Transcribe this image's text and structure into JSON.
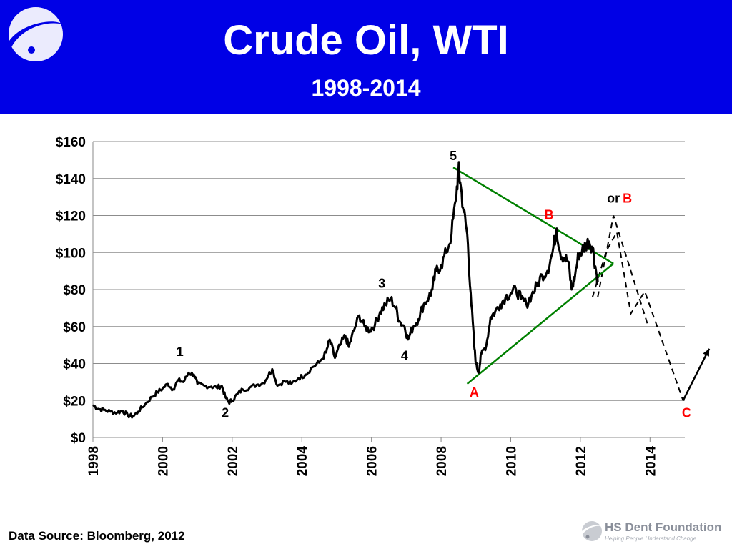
{
  "header": {
    "title": "Crude Oil, WTI",
    "subtitle": "1998-2014",
    "background_color": "#0000e6",
    "logo_icon": "circular-swoosh-logo-icon"
  },
  "footer": {
    "source": "Data Source: Bloomberg, 2012",
    "brand": "HS Dent Foundation",
    "tagline": "Helping People Understand Change",
    "logo_icon": "swoosh-logo-icon"
  },
  "chart_data": {
    "type": "line",
    "title": "",
    "xlabel": "",
    "ylabel": "",
    "xlim": [
      1998,
      2015
    ],
    "ylim": [
      0,
      160
    ],
    "y_ticks": [
      0,
      20,
      40,
      60,
      80,
      100,
      120,
      140,
      160
    ],
    "y_tick_labels": [
      "$0",
      "$20",
      "$40",
      "$60",
      "$80",
      "$100",
      "$120",
      "$140",
      "$160"
    ],
    "x_ticks": [
      1998,
      2000,
      2002,
      2004,
      2006,
      2008,
      2010,
      2012,
      2014
    ],
    "x_tick_labels": [
      "1998",
      "2000",
      "2002",
      "2004",
      "2006",
      "2008",
      "2010",
      "2012",
      "2014"
    ],
    "grid": "horizontal",
    "legend": "none",
    "series": [
      {
        "color": "#000000",
        "points": [
          [
            1998.0,
            17.5
          ],
          [
            1998.15,
            15.5
          ],
          [
            1998.3,
            15.0
          ],
          [
            1998.5,
            14.0
          ],
          [
            1998.7,
            13.5
          ],
          [
            1998.85,
            14.5
          ],
          [
            1999.0,
            12.0
          ],
          [
            1999.15,
            11.5
          ],
          [
            1999.3,
            14.0
          ],
          [
            1999.5,
            18.0
          ],
          [
            1999.7,
            22.0
          ],
          [
            1999.85,
            24.5
          ],
          [
            2000.0,
            26.5
          ],
          [
            2000.15,
            29.0
          ],
          [
            2000.3,
            26.0
          ],
          [
            2000.45,
            31.0
          ],
          [
            2000.6,
            30.0
          ],
          [
            2000.75,
            35.0
          ],
          [
            2000.9,
            34.0
          ],
          [
            2001.0,
            29.0
          ],
          [
            2001.2,
            28.0
          ],
          [
            2001.4,
            27.5
          ],
          [
            2001.55,
            27.0
          ],
          [
            2001.7,
            28.0
          ],
          [
            2001.8,
            22.0
          ],
          [
            2001.9,
            19.0
          ],
          [
            2002.0,
            20.0
          ],
          [
            2002.15,
            23.5
          ],
          [
            2002.3,
            26.0
          ],
          [
            2002.5,
            27.0
          ],
          [
            2002.7,
            28.5
          ],
          [
            2002.9,
            29.5
          ],
          [
            2003.05,
            34.0
          ],
          [
            2003.15,
            37.0
          ],
          [
            2003.3,
            28.0
          ],
          [
            2003.5,
            30.5
          ],
          [
            2003.7,
            29.0
          ],
          [
            2003.9,
            32.0
          ],
          [
            2004.1,
            34.0
          ],
          [
            2004.3,
            38.0
          ],
          [
            2004.5,
            40.5
          ],
          [
            2004.7,
            46.0
          ],
          [
            2004.8,
            53.0
          ],
          [
            2004.95,
            43.0
          ],
          [
            2005.1,
            50.0
          ],
          [
            2005.25,
            55.0
          ],
          [
            2005.35,
            49.0
          ],
          [
            2005.5,
            58.0
          ],
          [
            2005.65,
            66.0
          ],
          [
            2005.8,
            60.0
          ],
          [
            2005.95,
            58.0
          ],
          [
            2006.1,
            61.0
          ],
          [
            2006.25,
            68.0
          ],
          [
            2006.4,
            72.0
          ],
          [
            2006.55,
            75.0
          ],
          [
            2006.7,
            70.0
          ],
          [
            2006.8,
            63.0
          ],
          [
            2006.95,
            60.0
          ],
          [
            2007.05,
            53.0
          ],
          [
            2007.2,
            60.0
          ],
          [
            2007.35,
            64.0
          ],
          [
            2007.5,
            72.0
          ],
          [
            2007.65,
            76.0
          ],
          [
            2007.75,
            80.0
          ],
          [
            2007.85,
            90.0
          ],
          [
            2008.0,
            93.0
          ],
          [
            2008.15,
            100.0
          ],
          [
            2008.3,
            110.0
          ],
          [
            2008.42,
            128.0
          ],
          [
            2008.5,
            145.0
          ],
          [
            2008.55,
            138.0
          ],
          [
            2008.65,
            122.0
          ],
          [
            2008.75,
            110.0
          ],
          [
            2008.85,
            78.0
          ],
          [
            2008.95,
            50.0
          ],
          [
            2009.0,
            40.0
          ],
          [
            2009.08,
            35.0
          ],
          [
            2009.15,
            45.0
          ],
          [
            2009.3,
            50.0
          ],
          [
            2009.42,
            65.0
          ],
          [
            2009.55,
            68.0
          ],
          [
            2009.7,
            72.0
          ],
          [
            2009.85,
            76.0
          ],
          [
            2010.0,
            78.0
          ],
          [
            2010.15,
            80.0
          ],
          [
            2010.3,
            75.0
          ],
          [
            2010.45,
            72.0
          ],
          [
            2010.6,
            77.0
          ],
          [
            2010.75,
            82.0
          ],
          [
            2010.9,
            88.0
          ],
          [
            2011.05,
            90.0
          ],
          [
            2011.2,
            100.0
          ],
          [
            2011.32,
            113.0
          ],
          [
            2011.42,
            100.0
          ],
          [
            2011.55,
            97.0
          ],
          [
            2011.65,
            95.0
          ],
          [
            2011.75,
            80.0
          ],
          [
            2011.85,
            88.0
          ],
          [
            2011.95,
            99.0
          ],
          [
            2012.05,
            101.0
          ],
          [
            2012.15,
            104.0
          ],
          [
            2012.25,
            106.0
          ],
          [
            2012.35,
            103.0
          ],
          [
            2012.45,
            90.0
          ],
          [
            2012.5,
            84.0
          ]
        ]
      }
    ],
    "trendlines": [
      {
        "color": "#008000",
        "from": [
          2008.35,
          146.0
        ],
        "to": [
          2012.95,
          94.0
        ]
      },
      {
        "color": "#008000",
        "from": [
          2008.75,
          29.0
        ],
        "to": [
          2012.95,
          94.0
        ]
      }
    ],
    "projections": [
      {
        "color": "#000000",
        "style": "dashed",
        "points": [
          [
            2012.35,
            76.0
          ],
          [
            2012.75,
            101.0
          ],
          [
            2013.05,
            111.0
          ],
          [
            2013.45,
            67.0
          ],
          [
            2013.85,
            79.0
          ],
          [
            2014.95,
            20.0
          ]
        ]
      },
      {
        "color": "#000000",
        "style": "dashed",
        "points": [
          [
            2012.5,
            76.0
          ],
          [
            2012.95,
            120.0
          ],
          [
            2013.95,
            60.0
          ]
        ]
      }
    ],
    "arrows": [
      {
        "color": "#000000",
        "from": [
          2014.95,
          20.0
        ],
        "to": [
          2015.7,
          48.0
        ]
      }
    ],
    "annotations": [
      {
        "text": "1",
        "x": 2000.5,
        "y": 44.0,
        "color": "#000000"
      },
      {
        "text": "2",
        "x": 2001.8,
        "y": 11.0,
        "color": "#000000"
      },
      {
        "text": "3",
        "x": 2006.3,
        "y": 81.0,
        "color": "#000000"
      },
      {
        "text": "4",
        "x": 2006.95,
        "y": 42.0,
        "color": "#000000"
      },
      {
        "text": "5",
        "x": 2008.35,
        "y": 150.0,
        "color": "#000000"
      },
      {
        "text": "A",
        "x": 2008.95,
        "y": 22.0,
        "color": "#ff0000"
      },
      {
        "text": "B",
        "x": 2011.1,
        "y": 118.0,
        "color": "#ff0000"
      },
      {
        "text": "or",
        "x": 2012.95,
        "y": 127.0,
        "color": "#000000"
      },
      {
        "text": "B",
        "x": 2013.35,
        "y": 127.0,
        "color": "#ff0000"
      },
      {
        "text": "C",
        "x": 2015.05,
        "y": 11.0,
        "color": "#ff0000"
      }
    ]
  }
}
